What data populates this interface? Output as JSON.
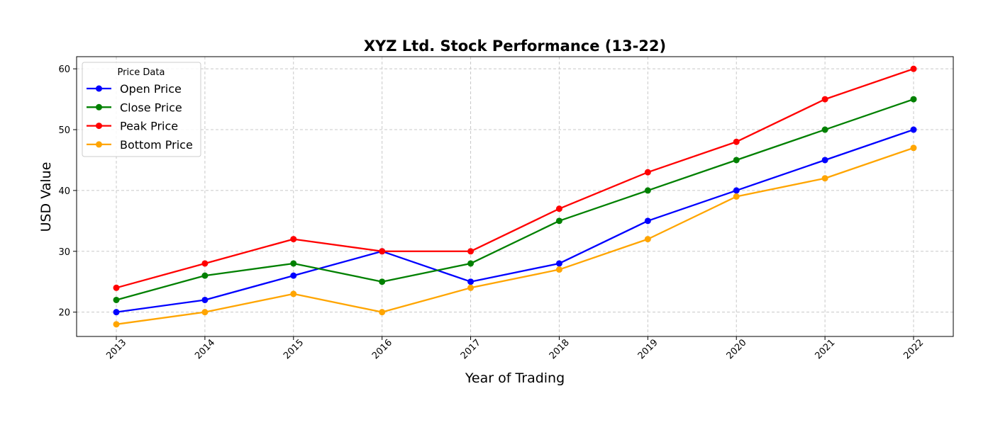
{
  "chart_data": {
    "type": "line",
    "title": "XYZ Ltd. Stock Performance (13-22)",
    "xlabel": "Year of Trading",
    "ylabel": "USD Value",
    "categories": [
      "2013",
      "2014",
      "2015",
      "2016",
      "2017",
      "2018",
      "2019",
      "2020",
      "2021",
      "2022"
    ],
    "y_ticks": [
      20,
      30,
      40,
      50,
      60
    ],
    "ylim": [
      16,
      62
    ],
    "grid": true,
    "legend": {
      "title": "Price Data",
      "placement": "top-left"
    },
    "series": [
      {
        "name": "Open Price",
        "color": "#0000ff",
        "values": [
          20,
          22,
          26,
          30,
          25,
          28,
          35,
          40,
          45,
          50
        ]
      },
      {
        "name": "Close Price",
        "color": "#008000",
        "values": [
          22,
          26,
          28,
          25,
          28,
          35,
          40,
          45,
          50,
          55
        ]
      },
      {
        "name": "Peak Price",
        "color": "#ff0000",
        "values": [
          24,
          28,
          32,
          30,
          30,
          37,
          43,
          48,
          55,
          60
        ]
      },
      {
        "name": "Bottom Price",
        "color": "#ffa500",
        "values": [
          18,
          20,
          23,
          20,
          24,
          27,
          32,
          39,
          42,
          47
        ]
      }
    ]
  }
}
